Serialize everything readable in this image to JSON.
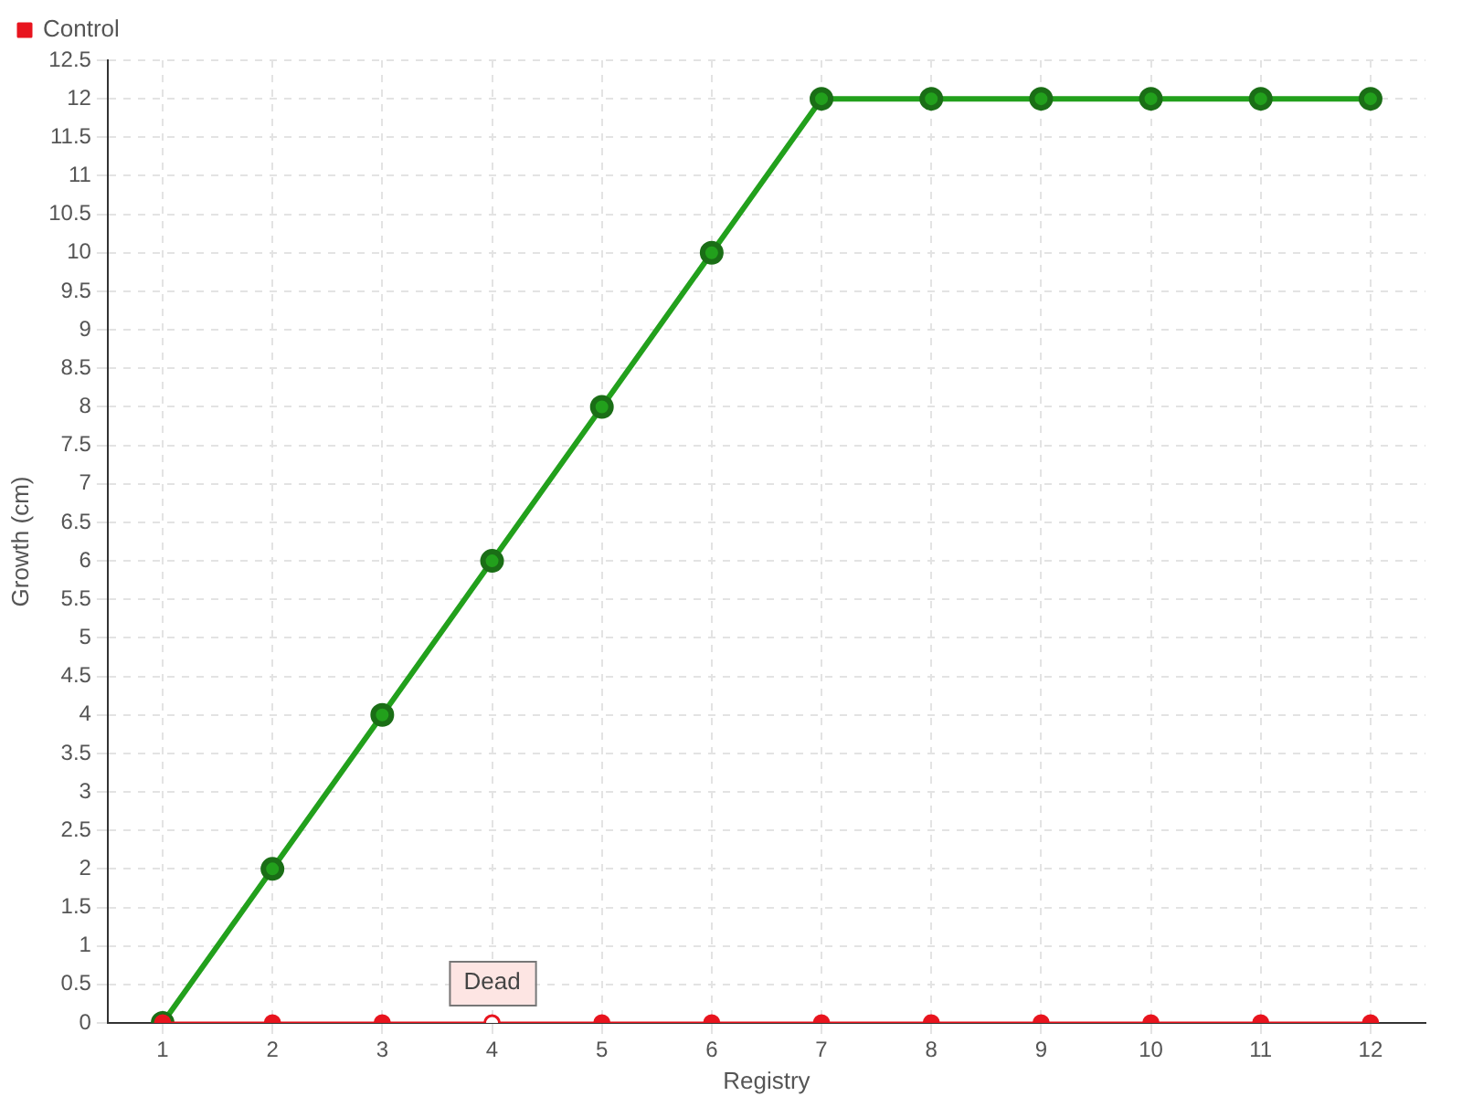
{
  "chart_data": {
    "type": "line",
    "xlabel": "Registry",
    "ylabel": "Growth (cm)",
    "x": [
      1,
      2,
      3,
      4,
      5,
      6,
      7,
      8,
      9,
      10,
      11,
      12
    ],
    "series": [
      {
        "color": "#22a01c",
        "values": [
          0,
          2,
          4,
          6,
          8,
          10,
          12,
          12,
          12,
          12,
          12,
          12
        ]
      },
      {
        "name": "Control",
        "color": "#e8141e",
        "values": [
          0,
          0,
          0,
          0,
          0,
          0,
          0,
          0,
          0,
          0,
          0,
          0
        ]
      }
    ],
    "xlim": [
      0.5,
      12.5
    ],
    "xticks": [
      1,
      2,
      3,
      4,
      5,
      6,
      7,
      8,
      9,
      10,
      11,
      12
    ],
    "ylim": [
      0,
      12.5
    ],
    "yticks": [
      0,
      0.5,
      1,
      1.5,
      2,
      2.5,
      3,
      3.5,
      4,
      4.5,
      5,
      5.5,
      6,
      6.5,
      7,
      7.5,
      8,
      8.5,
      9,
      9.5,
      10,
      10.5,
      11,
      11.5,
      12,
      12.5
    ],
    "grid": true,
    "legend": "top left",
    "marker": "circle",
    "line_style": "solid",
    "annotations": [
      {
        "text": "Dead",
        "x": 4,
        "y": 0
      }
    ]
  }
}
